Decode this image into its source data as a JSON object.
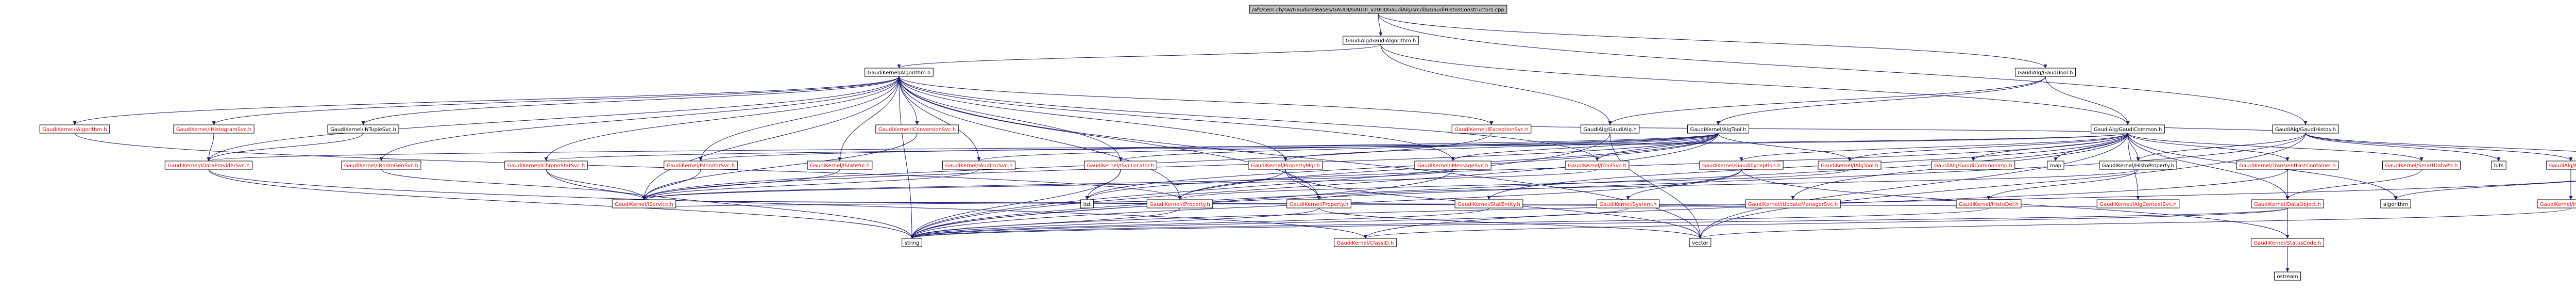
{
  "nodes": [
    {
      "label": "/afs/cern.ch/sw/Gaudi/releases/GAUDI/GAUDI_v20r3/GaudiAlg/src/lib/GaudiHistosConstructors.cpp",
      "color": "#000000"
    },
    {
      "label": "GaudiAlg/GaudiAlgorithm.h",
      "color": "#000000"
    },
    {
      "label": "GaudiKernel/Algorithm.h",
      "color": "#000000"
    },
    {
      "label": "GaudiAlg/GaudiTool.h",
      "color": "#000000"
    },
    {
      "label": "GaudiKernel/IAlgorithm.h",
      "color": "#ff0000"
    },
    {
      "label": "GaudiKernel/IHistogramSvc.h",
      "color": "#ff0000"
    },
    {
      "label": "GaudiKernel/INTupleSvc.h",
      "color": "#000000"
    },
    {
      "label": "GaudiKernel/IConversionSvc.h",
      "color": "#ff0000"
    },
    {
      "label": "GaudiKernel/IExceptionSvc.h",
      "color": "#ff0000"
    },
    {
      "label": "GaudiAlg/GaudiAlg.h",
      "color": "#000000"
    },
    {
      "label": "GaudiKernel/AlgTool.h",
      "color": "#000000"
    },
    {
      "label": "GaudiAlg/GaudiCommon.h",
      "color": "#000000"
    },
    {
      "label": "GaudiAlg/GaudiHistos.h",
      "color": "#000000"
    },
    {
      "label": "GaudiKernel/IDataProviderSvc.h",
      "color": "#ff0000"
    },
    {
      "label": "GaudiKernel/IRndmGenSvc.h",
      "color": "#ff0000"
    },
    {
      "label": "GaudiKernel/IChronoStatSvc.h",
      "color": "#ff0000"
    },
    {
      "label": "GaudiKernel/IMonitorSvc.h",
      "color": "#ff0000"
    },
    {
      "label": "GaudiKernel/IStateful.h",
      "color": "#ff0000"
    },
    {
      "label": "GaudiKernel/IAuditorSvc.h",
      "color": "#ff0000"
    },
    {
      "label": "GaudiKernel/ISvcLocator.h",
      "color": "#ff0000"
    },
    {
      "label": "GaudiKernel/PropertyMgr.h",
      "color": "#ff0000"
    },
    {
      "label": "GaudiKernel/IMessageSvc.h",
      "color": "#ff0000"
    },
    {
      "label": "GaudiKernel/IToolSvc.h",
      "color": "#ff0000"
    },
    {
      "label": "GaudiKernel/GaudiException.h",
      "color": "#ff0000"
    },
    {
      "label": "GaudiKernel/IAlgTool.h",
      "color": "#ff0000"
    },
    {
      "label": "GaudiAlg/GaudiCommonImp.h",
      "color": "#ff0000"
    },
    {
      "label": "map",
      "color": "#000000"
    },
    {
      "label": "GaudiKernel/HistoProperty.h",
      "color": "#000000"
    },
    {
      "label": "GaudiKernel/TransientFastContainer.h",
      "color": "#ff0000"
    },
    {
      "label": "GaudiKernel/SmartDataPtr.h",
      "color": "#ff0000"
    },
    {
      "label": "bits",
      "color": "#000000"
    },
    {
      "label": "GaudiAlg/Maps.h",
      "color": "#ff0000"
    },
    {
      "label": "GaudiAlg/HbookName.h",
      "color": "#000000"
    },
    {
      "label": "GaudiKernel/IService.h",
      "color": "#ff0000"
    },
    {
      "label": "list",
      "color": "#000000"
    },
    {
      "label": "GaudiKernel/IProperty.h",
      "color": "#ff0000"
    },
    {
      "label": "GaudiKernel/Property.h",
      "color": "#ff0000"
    },
    {
      "label": "GaudiKernel/StatEntity.h",
      "color": "#ff0000"
    },
    {
      "label": "GaudiKernel/System.h",
      "color": "#ff0000"
    },
    {
      "label": "GaudiKernel/IUpdateManagerSvc.h",
      "color": "#ff0000"
    },
    {
      "label": "GaudiKernel/HistoDef.h",
      "color": "#ff0000"
    },
    {
      "label": "GaudiKernel/IAlgContextSvc.h",
      "color": "#ff0000"
    },
    {
      "label": "GaudiKernel/DataObject.h",
      "color": "#ff0000"
    },
    {
      "label": "algorithm",
      "color": "#000000"
    },
    {
      "label": "GaudiKernel/HashMap.h",
      "color": "#ff0000"
    },
    {
      "label": "string",
      "color": "#000000"
    },
    {
      "label": "GaudiKernel/ClassID.h",
      "color": "#ff0000"
    },
    {
      "label": "vector",
      "color": "#000000"
    },
    {
      "label": "GaudiKernel/StatusCode.h",
      "color": "#ff0000"
    },
    {
      "label": "ostream",
      "color": "#000000"
    }
  ]
}
